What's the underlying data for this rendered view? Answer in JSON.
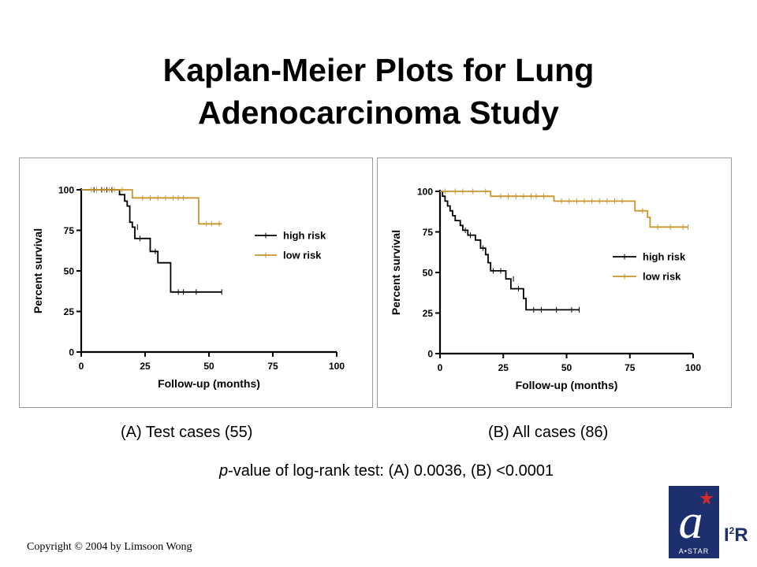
{
  "slide": {
    "title_line1": "Kaplan-Meier Plots for Lung",
    "title_line2": "Adenocarcinoma Study",
    "caption_a": "(A) Test cases (55)",
    "caption_b": "(B) All cases (86)",
    "pvalue_italic": "p",
    "pvalue_rest": "-value of log-rank test: (A) 0.0036, (B) <0.0001",
    "copyright": "Copyright © 2004 by Limsoon Wong",
    "logo_mark": "a",
    "logo_sub": "A•STAR",
    "logo_text_main": "I",
    "logo_text_sup": "2",
    "logo_text_end": "R"
  },
  "chart_data": [
    {
      "type": "line",
      "step": true,
      "xlabel": "Follow-up (months)",
      "ylabel": "Percent survival",
      "xlim": [
        0,
        100
      ],
      "ylim": [
        0,
        100
      ],
      "xticks": [
        "0",
        "25",
        "50",
        "75",
        "100"
      ],
      "yticks": [
        "0",
        "25",
        "50",
        "75",
        "100"
      ],
      "legend_position": "right",
      "series": [
        {
          "name": "high risk",
          "color": "#000000",
          "points": [
            [
              0,
              100
            ],
            [
              15,
              100
            ],
            [
              15,
              97
            ],
            [
              17,
              97
            ],
            [
              17,
              93
            ],
            [
              18,
              93
            ],
            [
              18,
              90
            ],
            [
              19,
              90
            ],
            [
              19,
              80
            ],
            [
              20,
              80
            ],
            [
              20,
              77
            ],
            [
              21,
              77
            ],
            [
              21,
              70
            ],
            [
              27,
              70
            ],
            [
              27,
              62
            ],
            [
              30,
              62
            ],
            [
              30,
              55
            ],
            [
              35,
              55
            ],
            [
              35,
              37
            ],
            [
              55,
              37
            ]
          ],
          "censored": [
            [
              5,
              100
            ],
            [
              8,
              100
            ],
            [
              10,
              100
            ],
            [
              12,
              100
            ],
            [
              22,
              77
            ],
            [
              23,
              70
            ],
            [
              29,
              62
            ],
            [
              38,
              37
            ],
            [
              40,
              37
            ],
            [
              45,
              37
            ],
            [
              55,
              37
            ]
          ]
        },
        {
          "name": "low risk",
          "color": "#c9962c",
          "points": [
            [
              0,
              100
            ],
            [
              20,
              100
            ],
            [
              20,
              95
            ],
            [
              46,
              95
            ],
            [
              46,
              79
            ],
            [
              55,
              79
            ]
          ],
          "censored": [
            [
              4,
              100
            ],
            [
              6,
              100
            ],
            [
              9,
              100
            ],
            [
              11,
              100
            ],
            [
              13,
              100
            ],
            [
              16,
              100
            ],
            [
              24,
              95
            ],
            [
              27,
              95
            ],
            [
              30,
              95
            ],
            [
              33,
              95
            ],
            [
              36,
              95
            ],
            [
              38,
              95
            ],
            [
              40,
              95
            ],
            [
              49,
              79
            ],
            [
              51,
              79
            ],
            [
              54,
              79
            ]
          ]
        }
      ]
    },
    {
      "type": "line",
      "step": true,
      "xlabel": "Follow-up (months)",
      "ylabel": "Percent survival",
      "xlim": [
        0,
        100
      ],
      "ylim": [
        0,
        100
      ],
      "xticks": [
        "0",
        "25",
        "50",
        "75",
        "100"
      ],
      "yticks": [
        "0",
        "25",
        "50",
        "75",
        "100"
      ],
      "legend_position": "right",
      "series": [
        {
          "name": "high risk",
          "color": "#000000",
          "points": [
            [
              0,
              100
            ],
            [
              1,
              100
            ],
            [
              1,
              97
            ],
            [
              2,
              97
            ],
            [
              2,
              94
            ],
            [
              3,
              94
            ],
            [
              3,
              91
            ],
            [
              4,
              91
            ],
            [
              4,
              88
            ],
            [
              5,
              88
            ],
            [
              5,
              85
            ],
            [
              6,
              85
            ],
            [
              6,
              82
            ],
            [
              8,
              82
            ],
            [
              8,
              79
            ],
            [
              9,
              79
            ],
            [
              9,
              76
            ],
            [
              11,
              76
            ],
            [
              11,
              73
            ],
            [
              14,
              73
            ],
            [
              14,
              70
            ],
            [
              16,
              70
            ],
            [
              16,
              65
            ],
            [
              18,
              65
            ],
            [
              18,
              61
            ],
            [
              19,
              61
            ],
            [
              19,
              56
            ],
            [
              20,
              56
            ],
            [
              20,
              51
            ],
            [
              26,
              51
            ],
            [
              26,
              46
            ],
            [
              28,
              46
            ],
            [
              28,
              40
            ],
            [
              33,
              40
            ],
            [
              33,
              34
            ],
            [
              34,
              34
            ],
            [
              34,
              27
            ],
            [
              55,
              27
            ]
          ],
          "censored": [
            [
              10,
              76
            ],
            [
              12,
              73
            ],
            [
              17,
              65
            ],
            [
              21,
              51
            ],
            [
              24,
              51
            ],
            [
              29,
              46
            ],
            [
              31,
              40
            ],
            [
              37,
              27
            ],
            [
              40,
              27
            ],
            [
              46,
              27
            ],
            [
              52,
              27
            ],
            [
              55,
              27
            ]
          ]
        },
        {
          "name": "low risk",
          "color": "#c9962c",
          "points": [
            [
              0,
              100
            ],
            [
              20,
              100
            ],
            [
              20,
              97
            ],
            [
              45,
              97
            ],
            [
              45,
              94
            ],
            [
              77,
              94
            ],
            [
              77,
              88
            ],
            [
              82,
              88
            ],
            [
              82,
              84
            ],
            [
              83,
              84
            ],
            [
              83,
              78
            ],
            [
              98,
              78
            ]
          ],
          "censored": [
            [
              2,
              100
            ],
            [
              6,
              100
            ],
            [
              9,
              100
            ],
            [
              13,
              100
            ],
            [
              18,
              100
            ],
            [
              24,
              97
            ],
            [
              27,
              97
            ],
            [
              30,
              97
            ],
            [
              33,
              97
            ],
            [
              36,
              97
            ],
            [
              38,
              97
            ],
            [
              41,
              97
            ],
            [
              48,
              94
            ],
            [
              51,
              94
            ],
            [
              54,
              94
            ],
            [
              57,
              94
            ],
            [
              60,
              94
            ],
            [
              63,
              94
            ],
            [
              66,
              94
            ],
            [
              69,
              94
            ],
            [
              72,
              94
            ],
            [
              80,
              88
            ],
            [
              86,
              78
            ],
            [
              91,
              78
            ],
            [
              96,
              78
            ],
            [
              98,
              78
            ]
          ]
        }
      ]
    }
  ]
}
